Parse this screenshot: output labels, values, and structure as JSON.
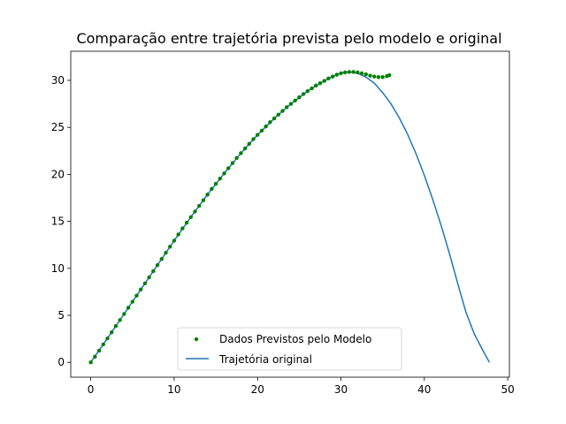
{
  "chart_data": {
    "type": "scatter+line",
    "title": "Comparação entre trajetória prevista pelo modelo e original",
    "xlabel": "",
    "ylabel": "",
    "xlim": [
      -2.4,
      50.2
    ],
    "ylim": [
      -1.58,
      33.1
    ],
    "xticks": [
      0,
      10,
      20,
      30,
      40,
      50
    ],
    "yticks": [
      0,
      5,
      10,
      15,
      20,
      25,
      30
    ],
    "grid": false,
    "legend_position": "lower center",
    "series": [
      {
        "name": "Dados Previstos pelo Modelo",
        "kind": "scatter",
        "color": "#008000",
        "points": [
          [
            0.0,
            0.0
          ],
          [
            0.5,
            0.6
          ],
          [
            1.0,
            1.25
          ],
          [
            1.5,
            1.9
          ],
          [
            2.0,
            2.55
          ],
          [
            2.5,
            3.2
          ],
          [
            3.0,
            3.85
          ],
          [
            3.5,
            4.5
          ],
          [
            4.0,
            5.15
          ],
          [
            4.5,
            5.8
          ],
          [
            5.0,
            6.45
          ],
          [
            5.5,
            7.1
          ],
          [
            6.0,
            7.75
          ],
          [
            6.5,
            8.4
          ],
          [
            7.0,
            9.05
          ],
          [
            7.5,
            9.7
          ],
          [
            8.0,
            10.35
          ],
          [
            8.5,
            11.0
          ],
          [
            9.0,
            11.65
          ],
          [
            9.5,
            12.3
          ],
          [
            10.0,
            12.95
          ],
          [
            10.5,
            13.6
          ],
          [
            11.0,
            14.25
          ],
          [
            11.5,
            14.85
          ],
          [
            12.0,
            15.45
          ],
          [
            12.5,
            16.05
          ],
          [
            13.0,
            16.65
          ],
          [
            13.5,
            17.25
          ],
          [
            14.0,
            17.85
          ],
          [
            14.5,
            18.45
          ],
          [
            15.0,
            19.0
          ],
          [
            15.5,
            19.55
          ],
          [
            16.0,
            20.1
          ],
          [
            16.5,
            20.65
          ],
          [
            17.0,
            21.2
          ],
          [
            17.5,
            21.75
          ],
          [
            18.0,
            22.25
          ],
          [
            18.5,
            22.75
          ],
          [
            19.0,
            23.25
          ],
          [
            19.5,
            23.75
          ],
          [
            20.0,
            24.2
          ],
          [
            20.5,
            24.65
          ],
          [
            21.0,
            25.1
          ],
          [
            21.5,
            25.55
          ],
          [
            22.0,
            25.95
          ],
          [
            22.5,
            26.35
          ],
          [
            23.0,
            26.75
          ],
          [
            23.5,
            27.15
          ],
          [
            24.0,
            27.5
          ],
          [
            24.5,
            27.85
          ],
          [
            25.0,
            28.2
          ],
          [
            25.5,
            28.55
          ],
          [
            26.0,
            28.85
          ],
          [
            26.5,
            29.15
          ],
          [
            27.0,
            29.45
          ],
          [
            27.5,
            29.7
          ],
          [
            28.0,
            29.95
          ],
          [
            28.5,
            30.2
          ],
          [
            29.0,
            30.4
          ],
          [
            29.5,
            30.6
          ],
          [
            30.0,
            30.75
          ],
          [
            30.5,
            30.85
          ],
          [
            31.0,
            30.9
          ],
          [
            31.5,
            30.9
          ],
          [
            32.0,
            30.85
          ],
          [
            32.5,
            30.75
          ],
          [
            33.0,
            30.65
          ],
          [
            33.5,
            30.5
          ],
          [
            34.0,
            30.4
          ],
          [
            34.5,
            30.35
          ],
          [
            35.0,
            30.35
          ],
          [
            35.5,
            30.45
          ],
          [
            35.8,
            30.55
          ]
        ]
      },
      {
        "name": "Trajetória original",
        "kind": "line",
        "color": "#1f77b4",
        "points": [
          [
            0.0,
            0.0
          ],
          [
            2.0,
            2.55
          ],
          [
            4.0,
            5.15
          ],
          [
            6.0,
            7.75
          ],
          [
            8.0,
            10.35
          ],
          [
            10.0,
            12.95
          ],
          [
            12.0,
            15.45
          ],
          [
            14.0,
            17.85
          ],
          [
            16.0,
            20.1
          ],
          [
            18.0,
            22.25
          ],
          [
            20.0,
            24.2
          ],
          [
            22.0,
            25.95
          ],
          [
            24.0,
            27.5
          ],
          [
            26.0,
            28.85
          ],
          [
            28.0,
            29.95
          ],
          [
            29.0,
            30.4
          ],
          [
            30.0,
            30.8
          ],
          [
            31.0,
            30.9
          ],
          [
            32.0,
            30.75
          ],
          [
            33.0,
            30.35
          ],
          [
            34.0,
            29.7
          ],
          [
            35.0,
            28.7
          ],
          [
            36.0,
            27.5
          ],
          [
            37.0,
            26.0
          ],
          [
            38.0,
            24.25
          ],
          [
            39.0,
            22.2
          ],
          [
            40.0,
            19.9
          ],
          [
            41.0,
            17.35
          ],
          [
            42.0,
            14.6
          ],
          [
            43.0,
            11.6
          ],
          [
            44.0,
            8.4
          ],
          [
            45.0,
            5.3
          ],
          [
            46.0,
            3.0
          ],
          [
            47.0,
            1.3
          ],
          [
            47.8,
            0.0
          ]
        ]
      }
    ]
  }
}
